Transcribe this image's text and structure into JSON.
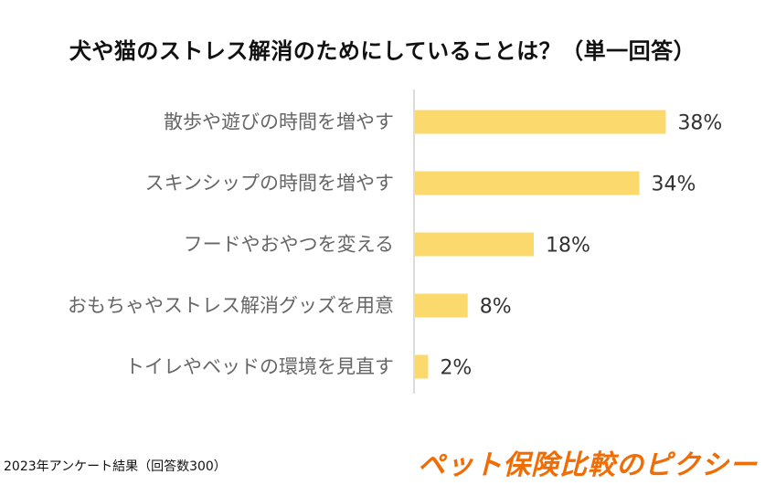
{
  "chart_data": {
    "type": "bar",
    "orientation": "horizontal",
    "title": "犬や猫のストレス解消のためにしていることは？（単一回答）",
    "categories": [
      "散歩や遊びの時間を増やす",
      "スキンシップの時間を増やす",
      "フードやおやつを変える",
      "おもちゃやストレス解消グッズを用意",
      "トイレやベッドの環境を見直す"
    ],
    "values": [
      38,
      34,
      18,
      8,
      2
    ],
    "value_labels": [
      "38%",
      "34%",
      "18%",
      "8%",
      "2%"
    ],
    "unit": "%",
    "xlim": [
      0,
      45
    ],
    "grid": false,
    "bar_color": "#fcd96d",
    "axis_color": "#d0d0d0"
  },
  "footnote": "2023年アンケート結果（回答数300）",
  "brand": "ペット保険比較のピクシー",
  "colors": {
    "brand": "#f06d05"
  }
}
